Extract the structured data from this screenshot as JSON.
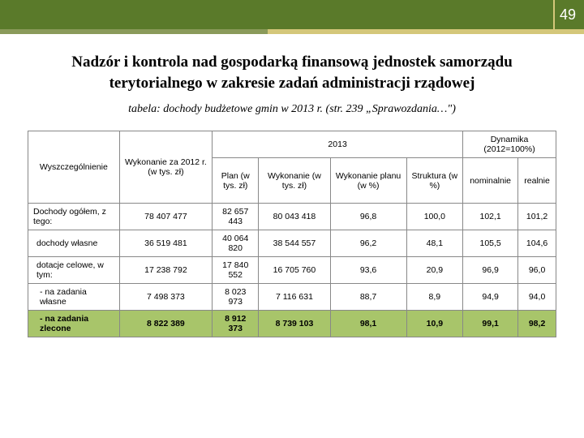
{
  "page": {
    "number": "49"
  },
  "heading": {
    "line1": "Nadzór i kontrola nad gospodarką finansową jednostek samorządu",
    "line2": "terytorialnego w zakresie zadań administracji rządowej"
  },
  "caption": "tabela: dochody budżetowe gmin w 2013 r. (str. 239 „Sprawozdania…\")",
  "table": {
    "columns": {
      "col1": "Wyszczególnienie",
      "col2": "Wykonanie za 2012 r. (w tys. zł)",
      "group_2013": "2013",
      "col3": "Plan (w tys. zł)",
      "col4": "Wykonanie (w tys. zł)",
      "col5": "Wykonanie planu (w %)",
      "col6": "Struktura (w %)",
      "group_dyn": "Dynamika (2012=100%)",
      "col7": "nominalnie",
      "col8": "realnie"
    },
    "rows": [
      {
        "label": "Dochody ogółem, z tego:",
        "indent": 0,
        "c2": "78 407 477",
        "c3": "82 657 443",
        "c4": "80 043 418",
        "c5": "96,8",
        "c6": "100,0",
        "c7": "102,1",
        "c8": "101,2"
      },
      {
        "label": "dochody własne",
        "indent": 1,
        "c2": "36 519 481",
        "c3": "40 064 820",
        "c4": "38 544 557",
        "c5": "96,2",
        "c6": "48,1",
        "c7": "105,5",
        "c8": "104,6"
      },
      {
        "label": "dotacje celowe, w tym:",
        "indent": 1,
        "c2": "17 238 792",
        "c3": "17 840 552",
        "c4": "16 705 760",
        "c5": "93,6",
        "c6": "20,9",
        "c7": "96,9",
        "c8": "96,0"
      },
      {
        "label": "- na zadania własne",
        "indent": 2,
        "c2": "7 498 373",
        "c3": "8 023 973",
        "c4": "7 116 631",
        "c5": "88,7",
        "c6": "8,9",
        "c7": "94,9",
        "c8": "94,0"
      },
      {
        "label": "- na zadania zlecone",
        "indent": 2,
        "highlight": true,
        "c2": "8 822 389",
        "c3": "8 912 373",
        "c4": "8 739 103",
        "c5": "98,1",
        "c6": "10,9",
        "c7": "99,1",
        "c8": "98,2"
      }
    ]
  },
  "colors": {
    "header_bar": "#5a7a2a",
    "accent_left": "#8a9a5a",
    "accent_right": "#d4c77a",
    "highlight": "#a8c56a",
    "border": "#888888",
    "text": "#000000",
    "page_number": "#ffffff"
  }
}
